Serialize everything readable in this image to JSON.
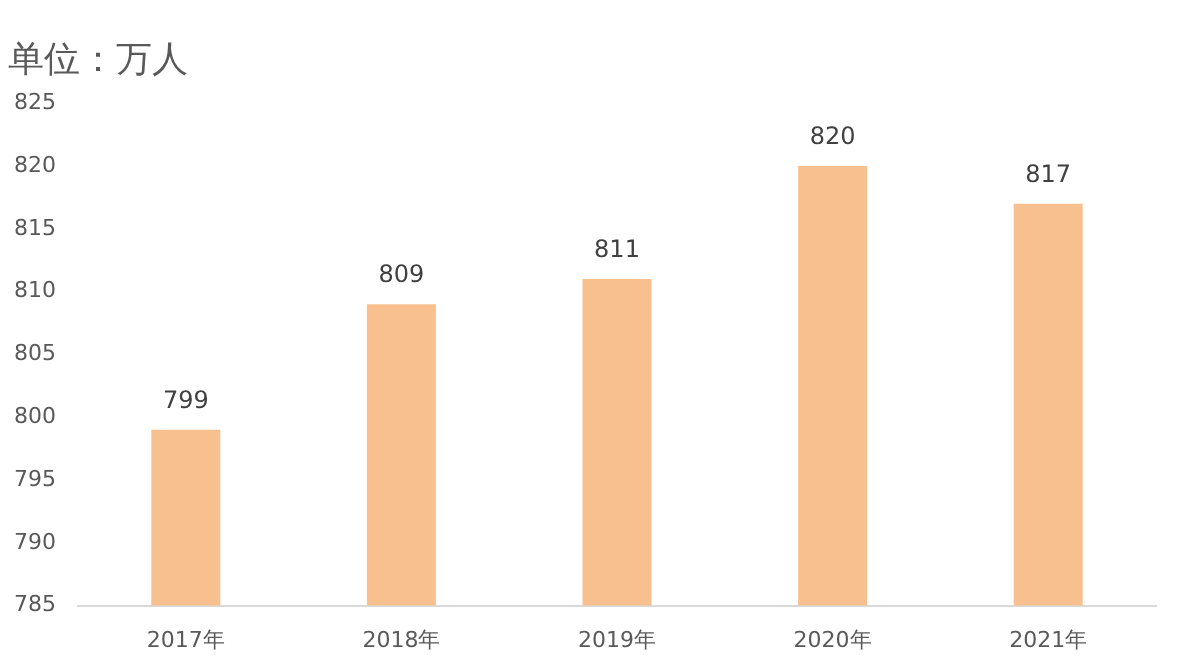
{
  "chart_data": {
    "type": "bar",
    "title": "单位：万人",
    "categories": [
      "2017年",
      "2018年",
      "2019年",
      "2020年",
      "2021年"
    ],
    "values": [
      799,
      809,
      811,
      820,
      817
    ],
    "color": "#f9c08f",
    "ylim": [
      785,
      825
    ],
    "yticks": [
      785,
      790,
      795,
      800,
      805,
      810,
      815,
      820,
      825
    ],
    "grid": false,
    "data_labels": true,
    "legend": false
  }
}
